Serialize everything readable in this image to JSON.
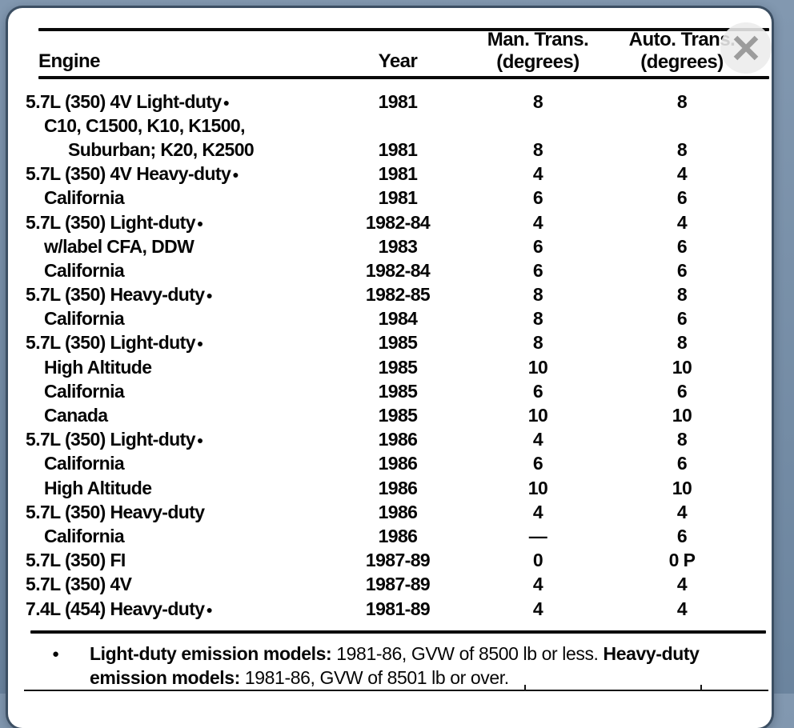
{
  "colors": {
    "background_top": "#8298b0",
    "background_bottom": "#6b849e",
    "panel": "#ffffff",
    "panel_border": "#3c4f63",
    "ink": "#060606",
    "close_x": "#9c9c9c"
  },
  "table": {
    "headers": {
      "engine": "Engine",
      "year": "Year",
      "man_trans_line1": "Man. Trans.",
      "man_trans_line2": "(degrees)",
      "auto_trans_line1": "Auto. Trans.",
      "auto_trans_line2": "(degrees)"
    },
    "rows": [
      {
        "engine": "5.7L (350) 4V Light-duty",
        "bullet": true,
        "indent": 0,
        "year": "1981",
        "man": "8",
        "auto": "8"
      },
      {
        "engine": "C10, C1500, K10, K1500,",
        "bullet": false,
        "indent": 1,
        "year": "",
        "man": "",
        "auto": ""
      },
      {
        "engine": "Suburban; K20, K2500",
        "bullet": false,
        "indent": 2,
        "year": "1981",
        "man": "8",
        "auto": "8"
      },
      {
        "engine": "5.7L (350) 4V Heavy-duty",
        "bullet": true,
        "indent": 0,
        "year": "1981",
        "man": "4",
        "auto": "4"
      },
      {
        "engine": "California",
        "bullet": false,
        "indent": 1,
        "year": "1981",
        "man": "6",
        "auto": "6"
      },
      {
        "engine": "5.7L (350) Light-duty",
        "bullet": true,
        "indent": 0,
        "year": "1982-84",
        "man": "4",
        "auto": "4"
      },
      {
        "engine": "w/label CFA, DDW",
        "bullet": false,
        "indent": 1,
        "year": "1983",
        "man": "6",
        "auto": "6"
      },
      {
        "engine": "California",
        "bullet": false,
        "indent": 1,
        "year": "1982-84",
        "man": "6",
        "auto": "6"
      },
      {
        "engine": "5.7L (350) Heavy-duty",
        "bullet": true,
        "indent": 0,
        "year": "1982-85",
        "man": "8",
        "auto": "8"
      },
      {
        "engine": "California",
        "bullet": false,
        "indent": 1,
        "year": "1984",
        "man": "8",
        "auto": "6"
      },
      {
        "engine": "5.7L (350) Light-duty",
        "bullet": true,
        "indent": 0,
        "year": "1985",
        "man": "8",
        "auto": "8"
      },
      {
        "engine": "High Altitude",
        "bullet": false,
        "indent": 1,
        "year": "1985",
        "man": "10",
        "auto": "10"
      },
      {
        "engine": "California",
        "bullet": false,
        "indent": 1,
        "year": "1985",
        "man": "6",
        "auto": "6"
      },
      {
        "engine": "Canada",
        "bullet": false,
        "indent": 1,
        "year": "1985",
        "man": "10",
        "auto": "10"
      },
      {
        "engine": "5.7L (350) Light-duty",
        "bullet": true,
        "indent": 0,
        "year": "1986",
        "man": "4",
        "auto": "8"
      },
      {
        "engine": "California",
        "bullet": false,
        "indent": 1,
        "year": "1986",
        "man": "6",
        "auto": "6"
      },
      {
        "engine": "High Altitude",
        "bullet": false,
        "indent": 1,
        "year": "1986",
        "man": "10",
        "auto": "10"
      },
      {
        "engine": "5.7L (350) Heavy-duty",
        "bullet": false,
        "indent": 0,
        "year": "1986",
        "man": "4",
        "auto": "4"
      },
      {
        "engine": "California",
        "bullet": false,
        "indent": 1,
        "year": "1986",
        "man": "—",
        "auto": "6"
      },
      {
        "engine": "5.7L (350) FI",
        "bullet": false,
        "indent": 0,
        "year": "1987-89",
        "man": "0",
        "auto": "0 P"
      },
      {
        "engine": "5.7L (350) 4V",
        "bullet": false,
        "indent": 0,
        "year": "1987-89",
        "man": "4",
        "auto": "4"
      },
      {
        "engine": "7.4L (454) Heavy-duty",
        "bullet": true,
        "indent": 0,
        "year": "1981-89",
        "man": "4",
        "auto": "4"
      }
    ]
  },
  "footnote": {
    "bullet": "●",
    "segments": [
      {
        "text": "Light-duty emission models:",
        "bold": true
      },
      {
        "text": " 1981-86, GVW of 8500 lb or less. ",
        "bold": false
      },
      {
        "text": "Heavy-duty emission models:",
        "bold": true
      },
      {
        "text": " 1981-86, GVW of 8501 lb or over.",
        "bold": false
      }
    ]
  }
}
